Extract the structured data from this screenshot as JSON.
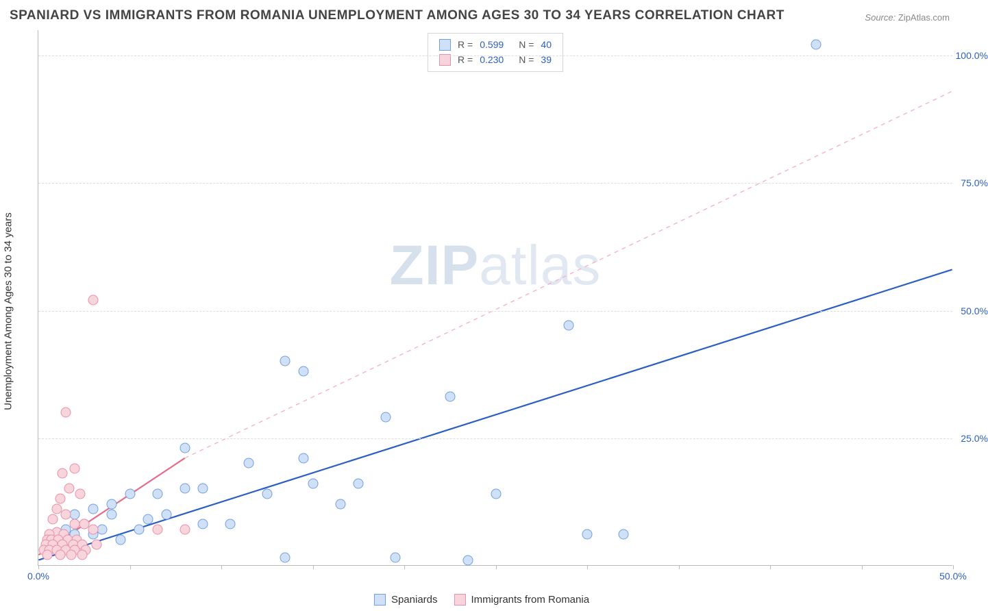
{
  "title": "SPANIARD VS IMMIGRANTS FROM ROMANIA UNEMPLOYMENT AMONG AGES 30 TO 34 YEARS CORRELATION CHART",
  "source_label": "Source:",
  "source_value": "ZipAtlas.com",
  "ylabel": "Unemployment Among Ages 30 to 34 years",
  "watermark_left": "ZIP",
  "watermark_right": "atlas",
  "chart": {
    "type": "scatter",
    "xlim": [
      0,
      50
    ],
    "ylim": [
      0,
      105
    ],
    "x_ticks": [
      0,
      5,
      10,
      15,
      20,
      25,
      30,
      35,
      40,
      45,
      50
    ],
    "x_tick_labels": {
      "0": "0.0%",
      "50": "50.0%"
    },
    "y_ticks": [
      25,
      50,
      75,
      100
    ],
    "y_tick_labels": {
      "25": "25.0%",
      "50": "50.0%",
      "75": "75.0%",
      "100": "100.0%"
    },
    "background": "#ffffff",
    "grid_color": "#dddddd",
    "axis_color": "#bbbbbb",
    "tick_color_x": "#2b5fc1",
    "tick_color_y": "#2b5fc1",
    "point_radius": 7.5,
    "point_stroke_width": 1.2,
    "series": [
      {
        "name": "Spaniards",
        "fill": "#cfe0f7",
        "stroke": "#6f9fe0",
        "r_label": "R =",
        "r_value": "0.599",
        "n_label": "N =",
        "n_value": "40",
        "trend": {
          "solid": {
            "x1": 0,
            "y1": 1,
            "x2": 50,
            "y2": 58,
            "color": "#2b5fc1",
            "width": 2.2
          },
          "dashed": null
        },
        "points": [
          [
            42.5,
            102
          ],
          [
            30,
            6
          ],
          [
            32,
            6
          ],
          [
            25,
            14
          ],
          [
            29,
            47
          ],
          [
            22.5,
            33
          ],
          [
            19.5,
            1.5
          ],
          [
            23.5,
            1
          ],
          [
            19,
            29
          ],
          [
            17.5,
            16
          ],
          [
            16.5,
            12
          ],
          [
            14.5,
            21
          ],
          [
            13.5,
            40
          ],
          [
            14.5,
            38
          ],
          [
            15,
            16
          ],
          [
            12.5,
            14
          ],
          [
            11.5,
            20
          ],
          [
            10.5,
            8
          ],
          [
            9,
            8
          ],
          [
            9,
            15
          ],
          [
            8,
            15
          ],
          [
            8,
            23
          ],
          [
            13.5,
            1.5
          ],
          [
            7,
            10
          ],
          [
            6.5,
            14
          ],
          [
            6,
            9
          ],
          [
            5.5,
            7
          ],
          [
            5,
            14
          ],
          [
            4.5,
            5
          ],
          [
            4,
            10
          ],
          [
            4,
            12
          ],
          [
            3.5,
            7
          ],
          [
            3,
            11
          ],
          [
            3,
            6
          ],
          [
            2.5,
            8
          ],
          [
            2,
            6
          ],
          [
            2,
            10
          ],
          [
            1.5,
            4
          ],
          [
            1.5,
            7
          ],
          [
            1,
            5
          ]
        ]
      },
      {
        "name": "Immigrants from Romania",
        "fill": "#f8d4dc",
        "stroke": "#e98fa6",
        "r_label": "R =",
        "r_value": "0.230",
        "n_label": "N =",
        "n_value": "39",
        "trend": {
          "solid": {
            "x1": 0,
            "y1": 2,
            "x2": 8,
            "y2": 21,
            "color": "#e86a8a",
            "width": 2.2
          },
          "dashed": {
            "x1": 8,
            "y1": 21,
            "x2": 50,
            "y2": 93,
            "color": "#f4aebf",
            "width": 1.3,
            "dash": "6,6"
          }
        },
        "points": [
          [
            3,
            52
          ],
          [
            1.5,
            30
          ],
          [
            2,
            19
          ],
          [
            1.3,
            18
          ],
          [
            1.7,
            15
          ],
          [
            1.2,
            13
          ],
          [
            2.3,
            14
          ],
          [
            1,
            11
          ],
          [
            1.5,
            10
          ],
          [
            0.8,
            9
          ],
          [
            2,
            8
          ],
          [
            2.5,
            8
          ],
          [
            3,
            7
          ],
          [
            1,
            6.5
          ],
          [
            1.4,
            6
          ],
          [
            0.6,
            6
          ],
          [
            6.5,
            7
          ],
          [
            8,
            7
          ],
          [
            0.5,
            5
          ],
          [
            0.7,
            5
          ],
          [
            1.1,
            5
          ],
          [
            1.6,
            5
          ],
          [
            2.1,
            5
          ],
          [
            0.4,
            4
          ],
          [
            0.8,
            4
          ],
          [
            1.3,
            4
          ],
          [
            1.9,
            4
          ],
          [
            2.4,
            4
          ],
          [
            3.2,
            4
          ],
          [
            0.3,
            3
          ],
          [
            0.6,
            3
          ],
          [
            1,
            3
          ],
          [
            1.5,
            3
          ],
          [
            2,
            3
          ],
          [
            2.6,
            3
          ],
          [
            0.5,
            2
          ],
          [
            1.2,
            2
          ],
          [
            1.8,
            2
          ],
          [
            2.4,
            2
          ]
        ]
      }
    ]
  },
  "legend_bottom": [
    {
      "swatch_fill": "#cfe0f7",
      "swatch_stroke": "#6f9fe0",
      "label": "Spaniards"
    },
    {
      "swatch_fill": "#f8d4dc",
      "swatch_stroke": "#e98fa6",
      "label": "Immigrants from Romania"
    }
  ]
}
